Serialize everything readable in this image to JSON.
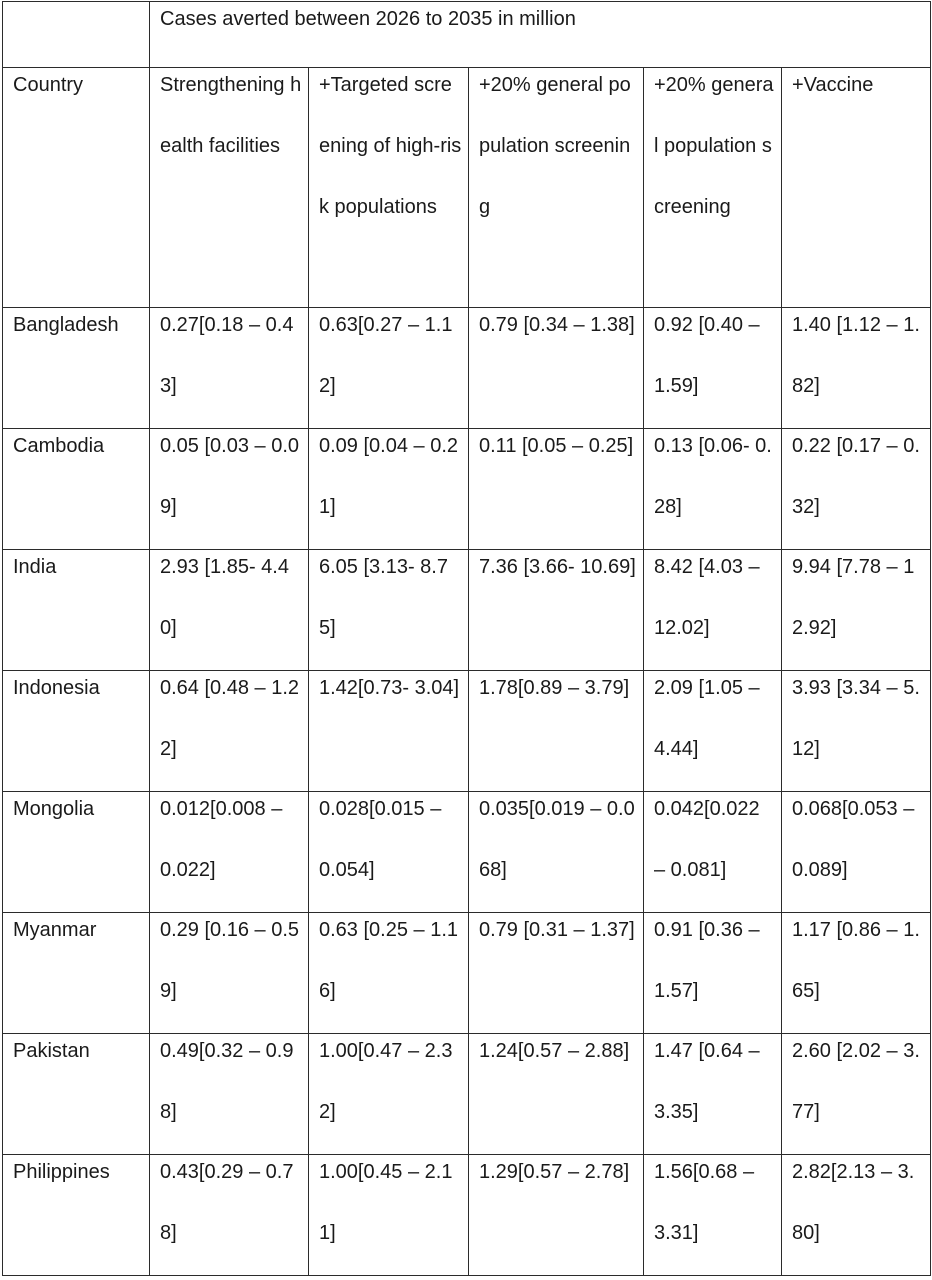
{
  "table": {
    "caption": "Cases averted between 2026 to 2035 in million",
    "headers": [
      "Country",
      "Strengthening health facilities",
      "+Targeted screening of high-risk populations",
      "+20% general population screening",
      "+20% general population screening",
      "+Vaccine"
    ],
    "rows": [
      [
        "Bangladesh",
        "0.27[0.18 – 0.43]",
        "0.63[0.27 – 1.12]",
        "0.79 [0.34 – 1.38]",
        "0.92 [0.40 – 1.59]",
        "1.40 [1.12 – 1.82]"
      ],
      [
        "Cambodia",
        "0.05 [0.03 – 0.09]",
        "0.09 [0.04 – 0.21]",
        "0.11 [0.05 – 0.25]",
        "0.13 [0.06- 0.28]",
        "0.22 [0.17 – 0.32]"
      ],
      [
        "India",
        "2.93 [1.85- 4.40]",
        "6.05 [3.13- 8.75]",
        "7.36 [3.66- 10.69]",
        "8.42 [4.03 – 12.02]",
        "9.94 [7.78 – 12.92]"
      ],
      [
        "Indonesia",
        "0.64 [0.48 – 1.22]",
        "1.42[0.73- 3.04]",
        "1.78[0.89 – 3.79]",
        "2.09 [1.05 – 4.44]",
        "3.93 [3.34 – 5.12]"
      ],
      [
        "Mongolia",
        "0.012[0.008 – 0.022]",
        "0.028[0.015 – 0.054]",
        "0.035[0.019 – 0.068]",
        "0.042[0.022 – 0.081]",
        "0.068[0.053 – 0.089]"
      ],
      [
        "Myanmar",
        "0.29 [0.16 – 0.59]",
        "0.63 [0.25 – 1.16]",
        "0.79 [0.31 – 1.37]",
        "0.91 [0.36 – 1.57]",
        "1.17 [0.86 – 1.65]"
      ],
      [
        "Pakistan",
        "0.49[0.32 – 0.98]",
        "1.00[0.47 – 2.32]",
        "1.24[0.57 – 2.88]",
        "1.47 [0.64 – 3.35]",
        "2.60 [2.02 – 3.77]"
      ],
      [
        "Philippines",
        "0.43[0.29 – 0.78]",
        "1.00[0.45 – 2.11]",
        "1.29[0.57 – 2.78]",
        "1.56[0.68 – 3.31]",
        "2.82[2.13 – 3.80]"
      ]
    ]
  }
}
